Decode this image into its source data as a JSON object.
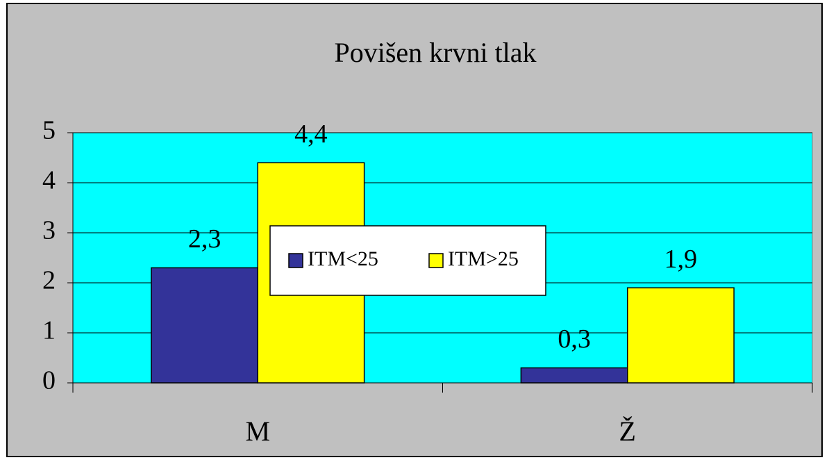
{
  "chart_data": {
    "type": "bar",
    "title": "Povišen krvni tlak",
    "categories": [
      "M",
      "Ž"
    ],
    "series": [
      {
        "name": "ITM<25",
        "color": "#333399",
        "values": [
          2.3,
          0.3
        ],
        "value_labels": [
          "2,3",
          "0,3"
        ]
      },
      {
        "name": "ITM>25",
        "color": "#ffff00",
        "values": [
          4.4,
          1.9
        ],
        "value_labels": [
          "4,4",
          "1,9"
        ]
      }
    ],
    "ylim": [
      0,
      5
    ],
    "yticks": [
      0,
      1,
      2,
      3,
      4,
      5
    ],
    "grid": true,
    "legend": "center",
    "plot_background": "#00ffff",
    "background": "#c0c0c0"
  }
}
